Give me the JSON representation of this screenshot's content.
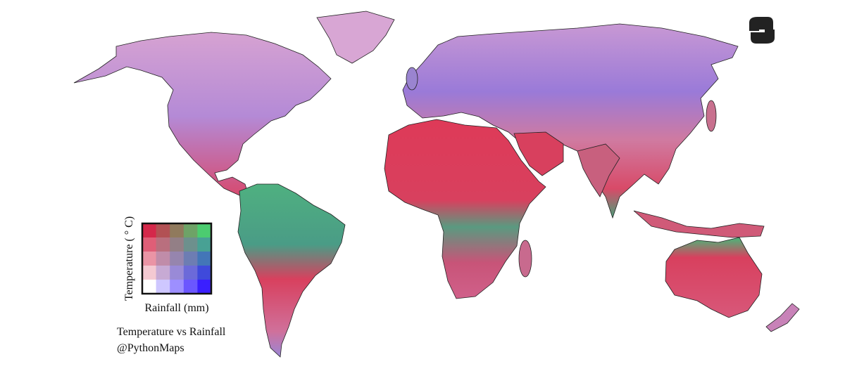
{
  "legend": {
    "y_label": "Temperature ( ° C)",
    "x_label": "Rainfall (mm)"
  },
  "caption": {
    "title": "Temperature vs Rainfall",
    "credit": "@PythonMaps"
  }
}
